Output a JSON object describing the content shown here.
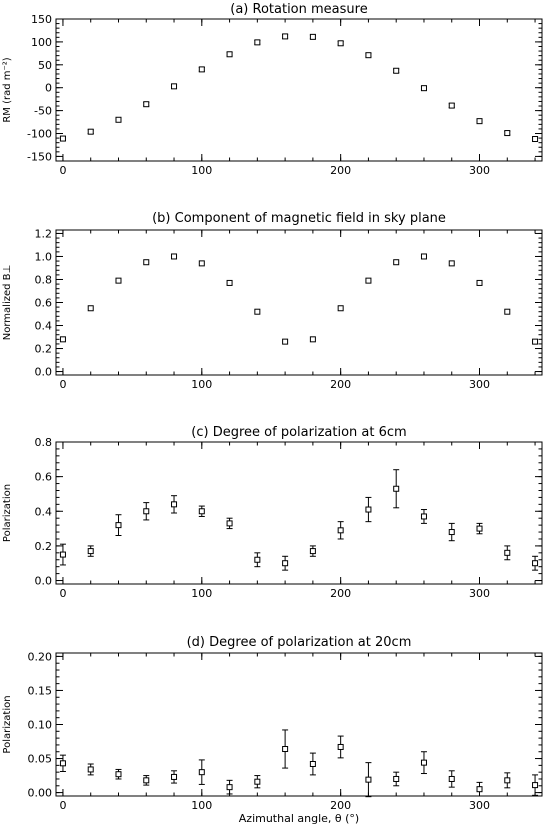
{
  "figure": {
    "x_axis_label": "Azimuthal angle, θ (°)"
  },
  "chart_data": [
    {
      "type": "scatter",
      "title": "(a) Rotation measure",
      "ylabel": "RM (rad m⁻²)",
      "xlim": [
        -5,
        345
      ],
      "ylim": [
        -160,
        150
      ],
      "xticks": [
        0,
        100,
        200,
        300
      ],
      "yticks": [
        -150,
        -100,
        -50,
        0,
        50,
        100,
        150
      ],
      "x": [
        0,
        20,
        40,
        60,
        80,
        100,
        120,
        140,
        160,
        180,
        200,
        220,
        240,
        260,
        280,
        300,
        320,
        340
      ],
      "y": [
        -111,
        -96,
        -70,
        -36,
        3,
        40,
        73,
        99,
        112,
        111,
        97,
        71,
        37,
        -1,
        -39,
        -73,
        -99,
        -112
      ],
      "yerr": [
        4,
        4,
        4,
        4,
        4,
        4,
        4,
        4,
        4,
        4,
        4,
        4,
        4,
        4,
        4,
        4,
        4,
        4
      ]
    },
    {
      "type": "scatter",
      "title": "(b) Component of magnetic field in sky plane",
      "ylabel": "Normalized B⊥",
      "xlim": [
        -5,
        345
      ],
      "ylim": [
        -0.03,
        1.23
      ],
      "xticks": [
        0,
        100,
        200,
        300
      ],
      "yticks": [
        0.0,
        0.2,
        0.4,
        0.6,
        0.8,
        1.0,
        1.2
      ],
      "x": [
        0,
        20,
        40,
        60,
        80,
        100,
        120,
        140,
        160,
        180,
        200,
        220,
        240,
        260,
        280,
        300,
        320,
        340
      ],
      "y": [
        0.28,
        0.55,
        0.79,
        0.95,
        1.0,
        0.94,
        0.77,
        0.52,
        0.26,
        0.28,
        0.55,
        0.79,
        0.95,
        1.0,
        0.94,
        0.77,
        0.52,
        0.26
      ],
      "yerr": []
    },
    {
      "type": "scatter",
      "title": "(c) Degree of polarization at 6cm",
      "ylabel": "Polarization",
      "xlim": [
        -5,
        345
      ],
      "ylim": [
        -0.02,
        0.8
      ],
      "xticks": [
        0,
        100,
        200,
        300
      ],
      "yticks": [
        0.0,
        0.2,
        0.4,
        0.6,
        0.8
      ],
      "x": [
        0,
        20,
        40,
        60,
        80,
        100,
        120,
        140,
        160,
        180,
        200,
        220,
        240,
        260,
        280,
        300,
        320,
        340
      ],
      "y": [
        0.15,
        0.17,
        0.32,
        0.4,
        0.44,
        0.4,
        0.33,
        0.12,
        0.1,
        0.17,
        0.29,
        0.41,
        0.53,
        0.37,
        0.28,
        0.3,
        0.16,
        0.1
      ],
      "yerr": [
        0.06,
        0.03,
        0.06,
        0.05,
        0.05,
        0.03,
        0.03,
        0.04,
        0.04,
        0.03,
        0.05,
        0.07,
        0.11,
        0.04,
        0.05,
        0.03,
        0.04,
        0.04
      ]
    },
    {
      "type": "scatter",
      "title": "(d) Degree of polarization at 20cm",
      "ylabel": "Polarization",
      "xlim": [
        -5,
        345
      ],
      "ylim": [
        -0.005,
        0.205
      ],
      "xticks": [
        0,
        100,
        200,
        300
      ],
      "yticks": [
        0.0,
        0.05,
        0.1,
        0.15,
        0.2
      ],
      "x": [
        0,
        20,
        40,
        60,
        80,
        100,
        120,
        140,
        160,
        180,
        200,
        220,
        240,
        260,
        280,
        300,
        320,
        340
      ],
      "y": [
        0.043,
        0.034,
        0.027,
        0.018,
        0.023,
        0.03,
        0.008,
        0.016,
        0.064,
        0.042,
        0.067,
        0.019,
        0.02,
        0.044,
        0.02,
        0.005,
        0.018,
        0.011
      ],
      "yerr": [
        0.012,
        0.008,
        0.007,
        0.007,
        0.009,
        0.018,
        0.01,
        0.009,
        0.028,
        0.016,
        0.016,
        0.025,
        0.01,
        0.016,
        0.012,
        0.01,
        0.011,
        0.015
      ]
    }
  ]
}
